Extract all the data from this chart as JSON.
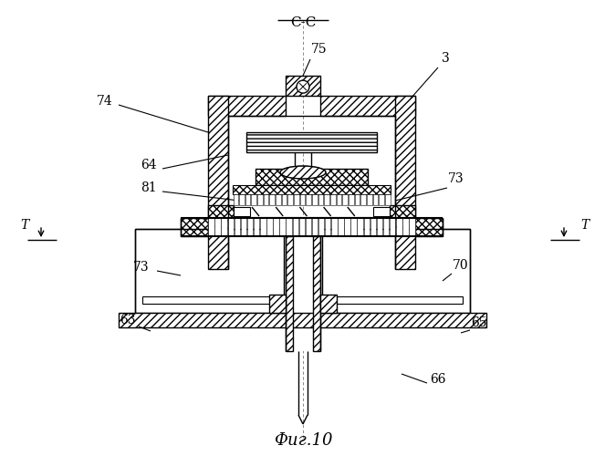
{
  "title": "С-С",
  "caption": "Фиг.10",
  "bg_color": "#ffffff",
  "line_color": "#000000",
  "figsize": [
    6.63,
    5.0
  ],
  "dpi": 100
}
